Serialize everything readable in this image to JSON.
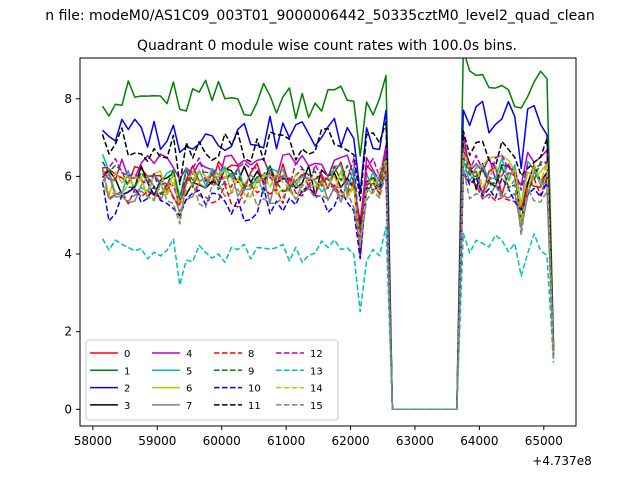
{
  "chart_data": {
    "type": "line",
    "suptitle": "n file: modeM0/AS1C09_003T01_9000006442_50335cztM0_level2_quad_clean",
    "title": "Quadrant 0 module wise count rates with 100.0s bins.",
    "xlabel": "",
    "ylabel": "",
    "x_offset_label": "+4.737e8",
    "xlim": [
      57800,
      65500
    ],
    "ylim": [
      -0.43,
      9.05
    ],
    "xticks": [
      58000,
      59000,
      60000,
      61000,
      62000,
      63000,
      64000,
      65000
    ],
    "xtick_labels": [
      "58000",
      "59000",
      "60000",
      "61000",
      "62000",
      "63000",
      "64000",
      "65000"
    ],
    "yticks": [
      0,
      2,
      4,
      6,
      8
    ],
    "ytick_labels": [
      "0",
      "2",
      "4",
      "6",
      "8"
    ],
    "grid": false,
    "legend_position": "lower-left",
    "bins": {
      "segment1": {
        "start": 58150,
        "end": 62550,
        "step": 100
      },
      "gap": {
        "start": 62650,
        "end": 63650,
        "step": 100,
        "value": 0
      },
      "segment2": {
        "start": 63750,
        "end": 65150,
        "step": 100
      }
    },
    "series": [
      {
        "name": "0",
        "color": "#ff0000",
        "dash": "solid",
        "level1": 6.0,
        "level2": 5.9,
        "amp": 0.3,
        "end": 1.5
      },
      {
        "name": "1",
        "color": "#008000",
        "dash": "solid",
        "level1": 8.0,
        "level2": 8.3,
        "amp": 0.4,
        "end": 1.7
      },
      {
        "name": "2",
        "color": "#0000ff",
        "dash": "solid",
        "level1": 7.1,
        "level2": 7.5,
        "amp": 0.35,
        "end": 1.6
      },
      {
        "name": "3",
        "color": "#000000",
        "dash": "solid",
        "level1": 5.9,
        "level2": 6.0,
        "amp": 0.3,
        "end": 1.5
      },
      {
        "name": "4",
        "color": "#bf00bf",
        "dash": "solid",
        "level1": 6.2,
        "level2": 6.3,
        "amp": 0.3,
        "end": 1.5
      },
      {
        "name": "5",
        "color": "#00bfbf",
        "dash": "solid",
        "level1": 5.9,
        "level2": 6.1,
        "amp": 0.3,
        "end": 1.4
      },
      {
        "name": "6",
        "color": "#bfbf00",
        "dash": "solid",
        "level1": 5.8,
        "level2": 6.2,
        "amp": 0.3,
        "end": 1.4
      },
      {
        "name": "7",
        "color": "#808080",
        "dash": "solid",
        "level1": 5.7,
        "level2": 5.8,
        "amp": 0.3,
        "end": 1.3
      },
      {
        "name": "8",
        "color": "#ff0000",
        "dash": "dashed",
        "level1": 5.6,
        "level2": 5.7,
        "amp": 0.3,
        "end": 1.4
      },
      {
        "name": "9",
        "color": "#008000",
        "dash": "dashed",
        "level1": 5.9,
        "level2": 6.0,
        "amp": 0.3,
        "end": 1.5
      },
      {
        "name": "10",
        "color": "#0000ff",
        "dash": "dashed",
        "level1": 5.3,
        "level2": 5.6,
        "amp": 0.35,
        "end": 1.4
      },
      {
        "name": "11",
        "color": "#000000",
        "dash": "dashed",
        "level1": 6.8,
        "level2": 6.6,
        "amp": 0.35,
        "end": 1.6
      },
      {
        "name": "12",
        "color": "#bf00bf",
        "dash": "dashed",
        "level1": 6.1,
        "level2": 6.2,
        "amp": 0.3,
        "end": 1.5
      },
      {
        "name": "13",
        "color": "#00bfbf",
        "dash": "dashed",
        "level1": 4.1,
        "level2": 4.2,
        "amp": 0.25,
        "end": 1.2
      },
      {
        "name": "14",
        "color": "#bfbf00",
        "dash": "dashed",
        "level1": 5.8,
        "level2": 6.0,
        "amp": 0.3,
        "end": 1.4
      },
      {
        "name": "15",
        "color": "#808080",
        "dash": "dashed",
        "level1": 5.5,
        "level2": 5.6,
        "amp": 0.3,
        "end": 1.3
      }
    ]
  }
}
